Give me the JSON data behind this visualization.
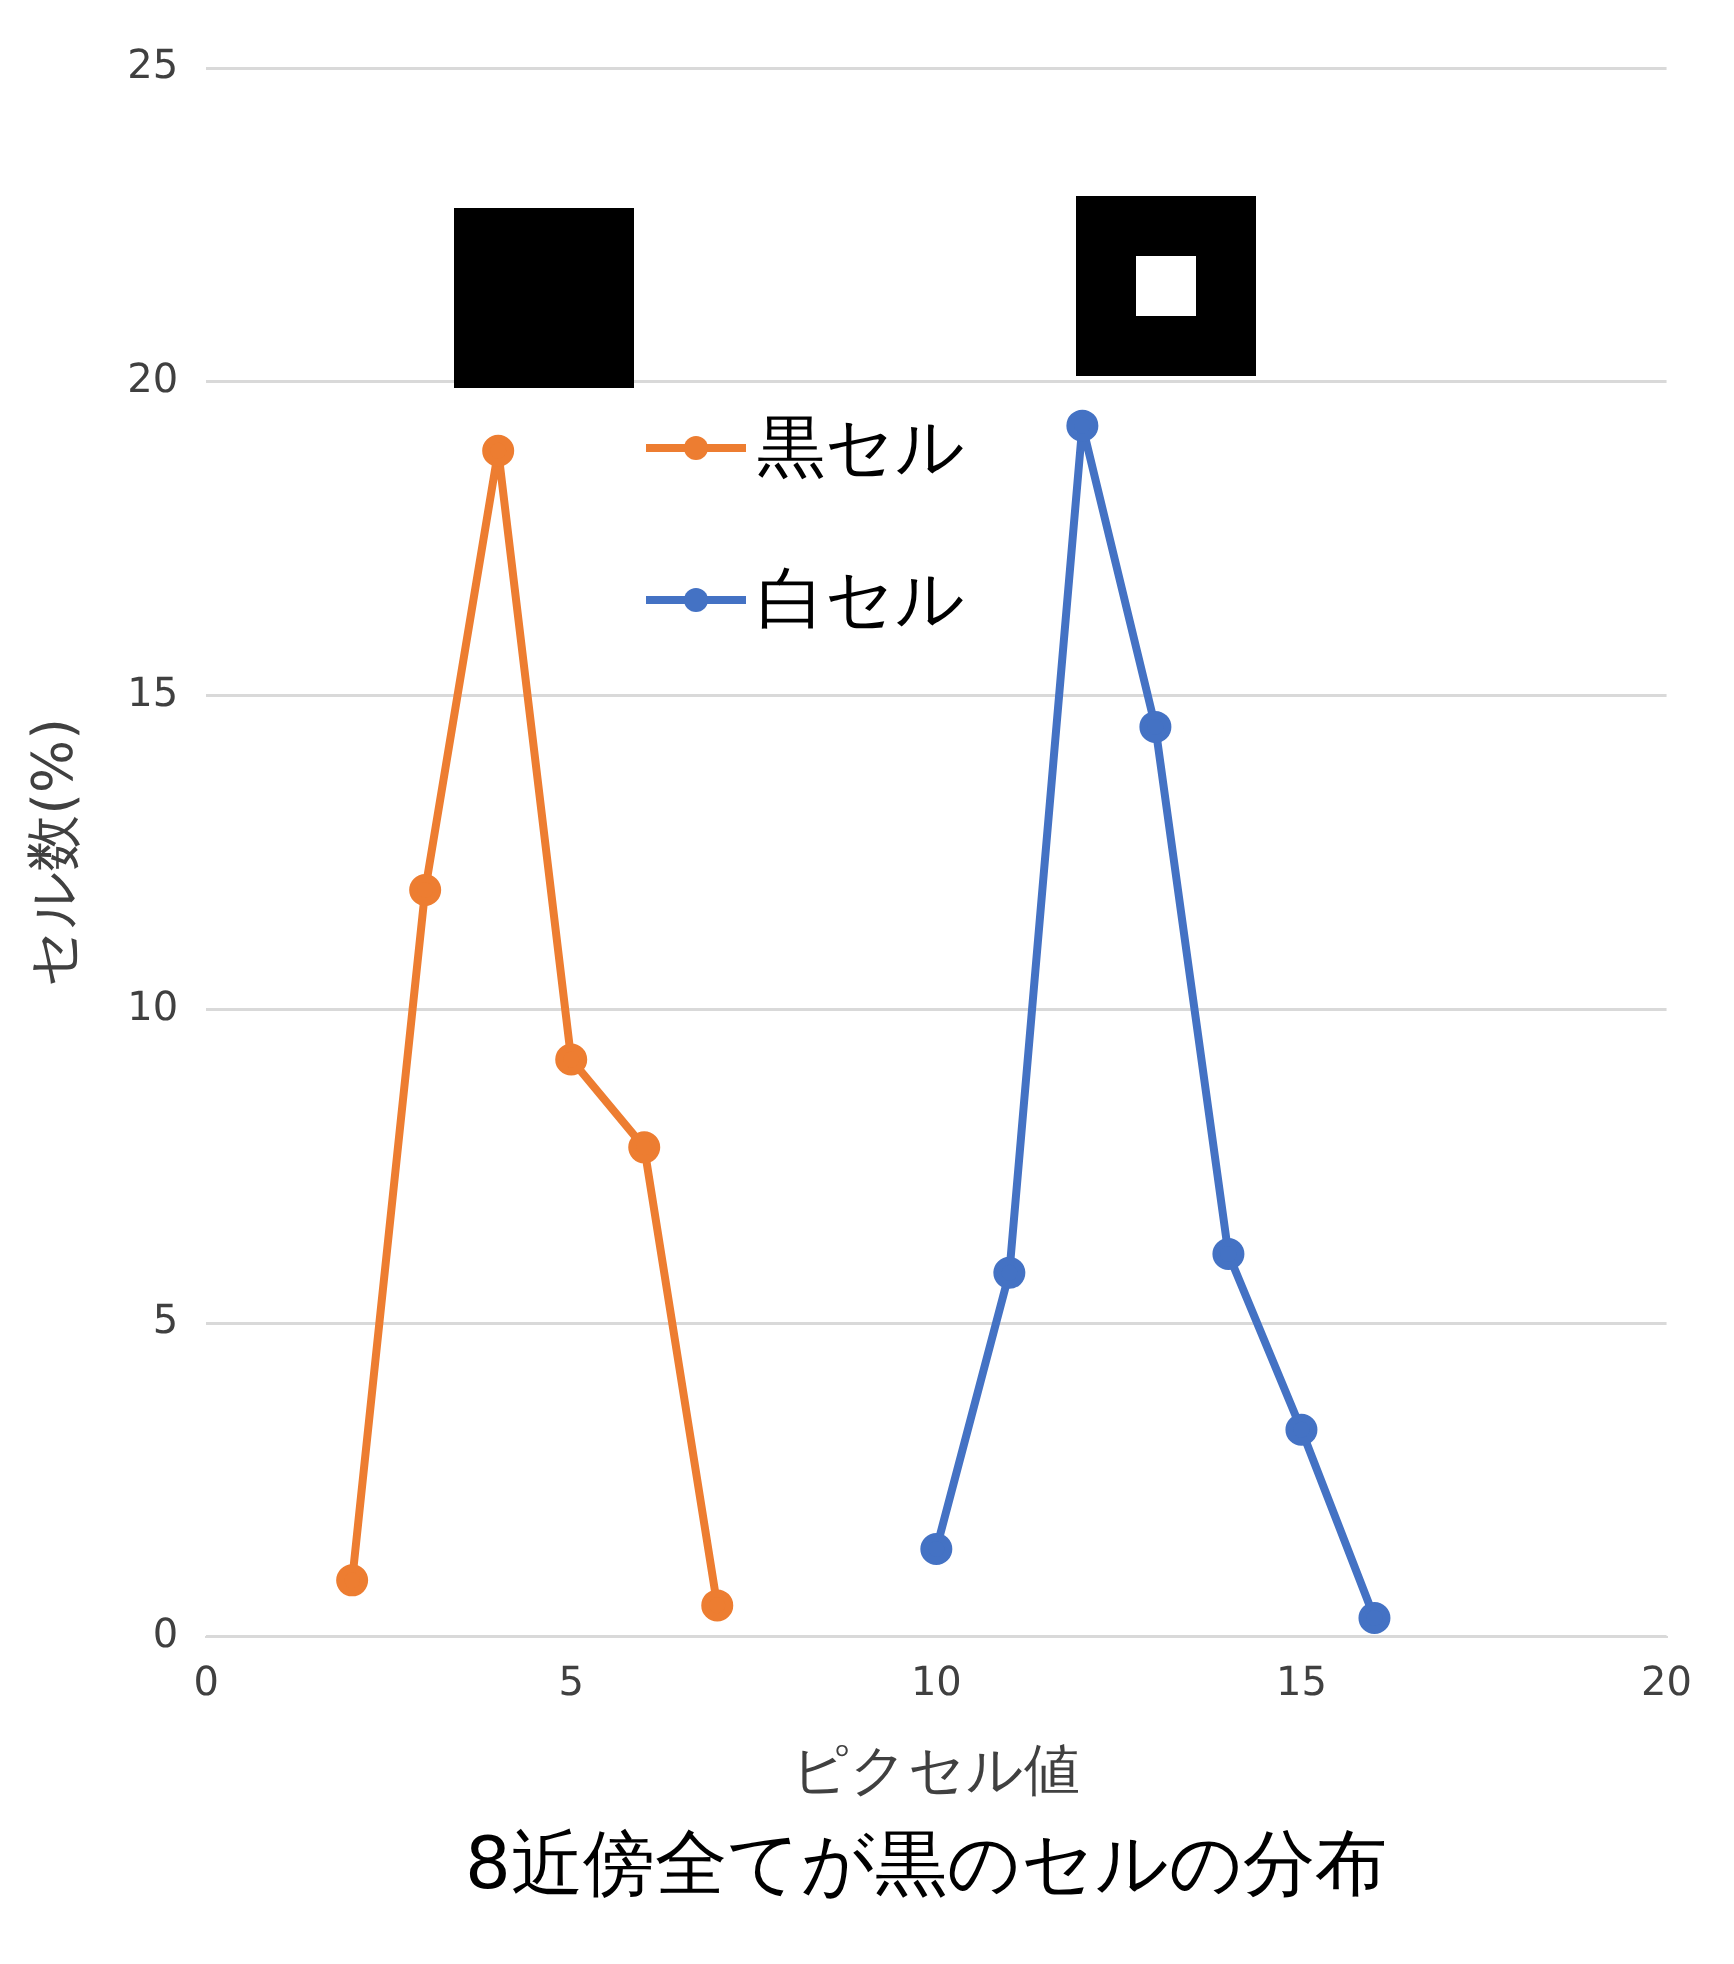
{
  "chart_data": {
    "type": "line",
    "xlabel": "ピクセル値",
    "ylabel": "セル数(%)",
    "annotations": [
      "8近傍全てが黒のセルの分布"
    ],
    "series": [
      {
        "name": "黒セル",
        "color": "#ed7d31",
        "x": [
          2,
          3,
          4,
          5,
          6,
          7
        ],
        "values": [
          0.9,
          11.9,
          18.9,
          9.2,
          7.8,
          0.5
        ]
      },
      {
        "name": "白セル",
        "color": "#4472c4",
        "x": [
          10,
          11,
          12,
          13,
          14,
          15,
          16
        ],
        "values": [
          1.4,
          5.8,
          19.3,
          14.5,
          6.1,
          3.3,
          0.3
        ]
      }
    ],
    "xlim": [
      0,
      20
    ],
    "xticks": [
      0,
      5,
      10,
      15,
      20
    ],
    "ylim": [
      0,
      25
    ],
    "yticks": [
      0,
      5,
      10,
      15,
      20,
      25
    ],
    "grid": "y",
    "legend": "top",
    "marker": "circle",
    "line_style": "solid"
  }
}
